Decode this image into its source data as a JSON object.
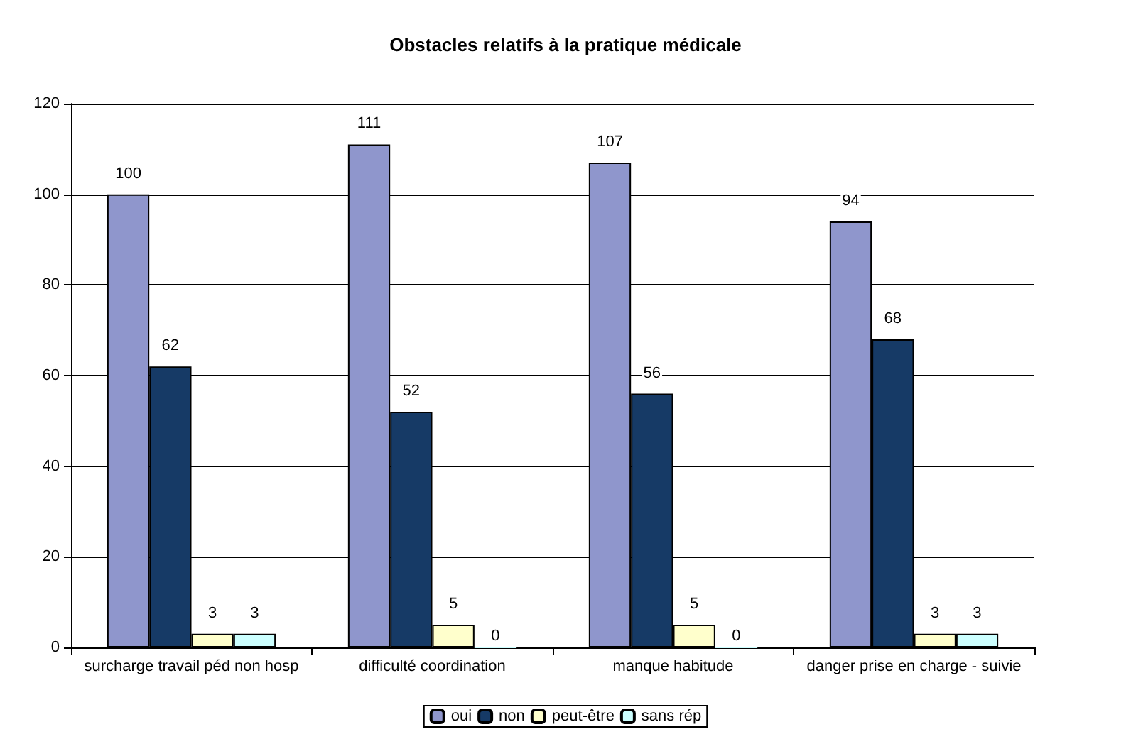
{
  "chart_data": {
    "type": "bar",
    "title": "Obstacles relatifs à la pratique médicale",
    "categories": [
      "surcharge travail péd non hosp",
      "difficulté coordination",
      "manque habitude",
      "danger prise en charge - suivie"
    ],
    "series": [
      {
        "name": "oui",
        "color": "#8f96cc",
        "values": [
          100,
          111,
          107,
          94
        ]
      },
      {
        "name": "non",
        "color": "#163a66",
        "values": [
          62,
          52,
          56,
          68
        ]
      },
      {
        "name": "peut-être",
        "color": "#ffffcc",
        "values": [
          3,
          5,
          5,
          3
        ]
      },
      {
        "name": "sans rép",
        "color": "#ccffff",
        "values": [
          3,
          0,
          0,
          3
        ]
      }
    ],
    "ylim": [
      0,
      120
    ],
    "yticks": [
      0,
      20,
      40,
      60,
      80,
      100,
      120
    ],
    "grid": "y",
    "legend": "bottom",
    "data_labels": true
  }
}
